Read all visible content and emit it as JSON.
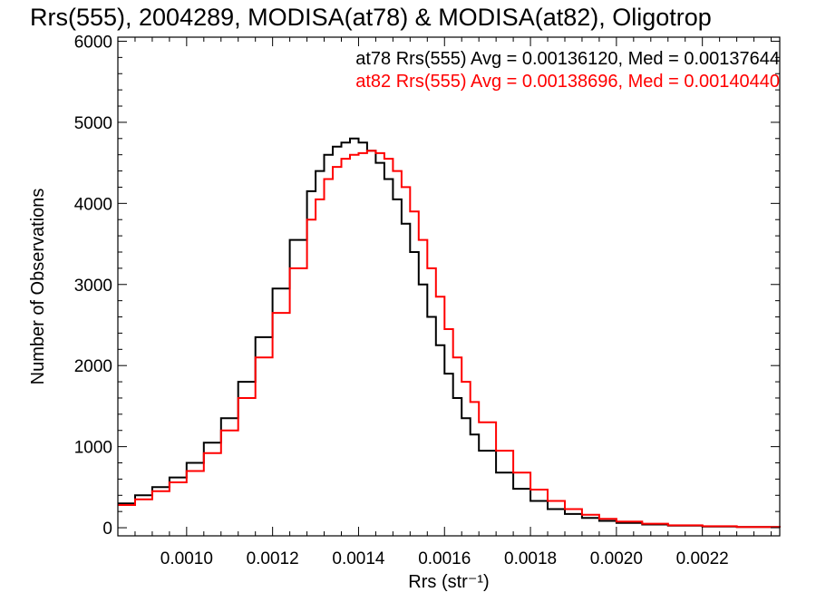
{
  "chart_data": {
    "type": "line",
    "title": "Rrs(555), 2004289, MODISA(at78) & MODISA(at82), Oligotrop",
    "xlabel": "Rrs (str⁻¹)",
    "ylabel": "Number of Observations",
    "xlim": [
      0.00084,
      0.00238
    ],
    "ylim": [
      -100,
      6050
    ],
    "x_ticks": [
      0.001,
      0.0012,
      0.0014,
      0.0016,
      0.0018,
      0.002,
      0.0022
    ],
    "x_tick_labels": [
      "0.0010",
      "0.0012",
      "0.0014",
      "0.0016",
      "0.0018",
      "0.0020",
      "0.0022"
    ],
    "y_ticks": [
      0,
      1000,
      2000,
      3000,
      4000,
      5000,
      6000
    ],
    "y_tick_labels": [
      "0",
      "1000",
      "2000",
      "3000",
      "4000",
      "5000",
      "6000"
    ],
    "grid": false,
    "legend_position": "top-right",
    "annotations": [
      {
        "text": "at78 Rrs(555) Avg = 0.00136120, Med = 0.00137644",
        "color": "#000000"
      },
      {
        "text": "at82 Rrs(555) Avg = 0.00138696, Med = 0.00140440",
        "color": "#ff0000"
      }
    ],
    "series": [
      {
        "color": "#000000",
        "x": [
          0.00084,
          0.00088,
          0.00092,
          0.00096,
          0.001,
          0.00104,
          0.00108,
          0.00112,
          0.00116,
          0.0012,
          0.00124,
          0.00128,
          0.0013,
          0.00132,
          0.00134,
          0.00136,
          0.00138,
          0.0014,
          0.00142,
          0.00144,
          0.00146,
          0.00148,
          0.0015,
          0.00152,
          0.00154,
          0.00156,
          0.00158,
          0.0016,
          0.00162,
          0.00164,
          0.00166,
          0.00168,
          0.00172,
          0.00176,
          0.0018,
          0.00184,
          0.00188,
          0.00192,
          0.00196,
          0.002,
          0.00206,
          0.00212,
          0.0022,
          0.00228,
          0.00238
        ],
        "values": [
          300,
          400,
          500,
          620,
          800,
          1050,
          1350,
          1800,
          2350,
          2950,
          3550,
          4150,
          4400,
          4600,
          4700,
          4750,
          4800,
          4750,
          4650,
          4500,
          4300,
          4050,
          3750,
          3400,
          3000,
          2600,
          2250,
          1900,
          1600,
          1350,
          1150,
          950,
          680,
          480,
          330,
          230,
          170,
          120,
          85,
          60,
          40,
          25,
          15,
          8,
          3
        ]
      },
      {
        "color": "#ff0000",
        "x": [
          0.00084,
          0.00088,
          0.00092,
          0.00096,
          0.001,
          0.00104,
          0.00108,
          0.00112,
          0.00116,
          0.0012,
          0.00124,
          0.00128,
          0.0013,
          0.00132,
          0.00134,
          0.00136,
          0.00138,
          0.0014,
          0.00142,
          0.00144,
          0.00146,
          0.00148,
          0.0015,
          0.00152,
          0.00154,
          0.00156,
          0.00158,
          0.0016,
          0.00162,
          0.00164,
          0.00166,
          0.00168,
          0.00172,
          0.00176,
          0.0018,
          0.00184,
          0.00188,
          0.00192,
          0.00196,
          0.002,
          0.00206,
          0.00212,
          0.0022,
          0.00228,
          0.00238
        ],
        "values": [
          280,
          350,
          450,
          560,
          700,
          920,
          1200,
          1600,
          2100,
          2650,
          3200,
          3800,
          4050,
          4300,
          4450,
          4550,
          4600,
          4620,
          4650,
          4620,
          4550,
          4400,
          4200,
          3900,
          3550,
          3200,
          2850,
          2450,
          2100,
          1800,
          1550,
          1300,
          950,
          680,
          470,
          330,
          230,
          160,
          110,
          75,
          50,
          30,
          18,
          10,
          4
        ]
      }
    ]
  }
}
